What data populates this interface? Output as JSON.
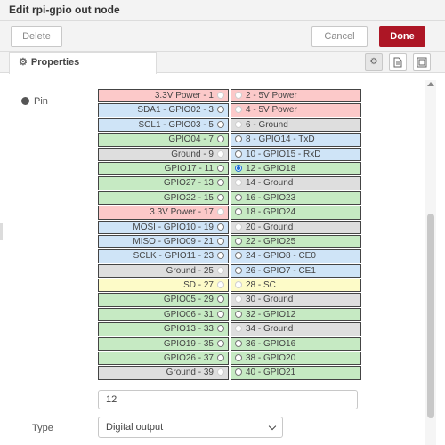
{
  "window": {
    "title": "Edit rpi-gpio out node"
  },
  "toolbar": {
    "delete_label": "Delete",
    "cancel_label": "Cancel",
    "done_label": "Done"
  },
  "tabs": {
    "properties_label": "Properties"
  },
  "form": {
    "pin_label": "Pin",
    "pin_value": "12",
    "type_label": "Type",
    "type_value": "Digital output"
  },
  "pins": [
    {
      "left": "3.3V Power - 1",
      "right": "2 - 5V Power",
      "left_color": "red",
      "right_color": "red",
      "left_radio": false,
      "right_radio": false
    },
    {
      "left": "SDA1 - GPIO02 - 3",
      "right": "4 - 5V Power",
      "left_color": "blue",
      "right_color": "red",
      "left_radio": true,
      "right_radio": false
    },
    {
      "left": "SCL1 - GPIO03 - 5",
      "right": "6 - Ground",
      "left_color": "blue",
      "right_color": "grey",
      "left_radio": true,
      "right_radio": false
    },
    {
      "left": "GPIO04 - 7",
      "right": "8 - GPIO14 - TxD",
      "left_color": "green",
      "right_color": "blue",
      "left_radio": true,
      "right_radio": true
    },
    {
      "left": "Ground - 9",
      "right": "10 - GPIO15 - RxD",
      "left_color": "grey",
      "right_color": "blue",
      "left_radio": false,
      "right_radio": true
    },
    {
      "left": "GPIO17 - 11",
      "right": "12 - GPIO18",
      "left_color": "green",
      "right_color": "green",
      "left_radio": true,
      "right_radio": true,
      "right_checked": true
    },
    {
      "left": "GPIO27 - 13",
      "right": "14 - Ground",
      "left_color": "green",
      "right_color": "grey",
      "left_radio": true,
      "right_radio": false
    },
    {
      "left": "GPIO22 - 15",
      "right": "16 - GPIO23",
      "left_color": "green",
      "right_color": "green",
      "left_radio": true,
      "right_radio": true
    },
    {
      "left": "3.3V Power - 17",
      "right": "18 - GPIO24",
      "left_color": "red",
      "right_color": "green",
      "left_radio": false,
      "right_radio": true
    },
    {
      "left": "MOSI - GPIO10 - 19",
      "right": "20 - Ground",
      "left_color": "blue",
      "right_color": "grey",
      "left_radio": true,
      "right_radio": false
    },
    {
      "left": "MISO - GPIO09 - 21",
      "right": "22 - GPIO25",
      "left_color": "blue",
      "right_color": "green",
      "left_radio": true,
      "right_radio": true
    },
    {
      "left": "SCLK - GPIO11 - 23",
      "right": "24 - GPIO8 - CE0",
      "left_color": "blue",
      "right_color": "blue",
      "left_radio": true,
      "right_radio": true
    },
    {
      "left": "Ground - 25",
      "right": "26 - GPIO7 - CE1",
      "left_color": "grey",
      "right_color": "blue",
      "left_radio": false,
      "right_radio": true
    },
    {
      "left": "SD - 27",
      "right": "28 - SC",
      "left_color": "yellow",
      "right_color": "yellow",
      "left_radio": false,
      "right_radio": false
    },
    {
      "left": "GPIO05 - 29",
      "right": "30 - Ground",
      "left_color": "green",
      "right_color": "grey",
      "left_radio": true,
      "right_radio": false
    },
    {
      "left": "GPIO06 - 31",
      "right": "32 - GPIO12",
      "left_color": "green",
      "right_color": "green",
      "left_radio": true,
      "right_radio": true
    },
    {
      "left": "GPIO13 - 33",
      "right": "34 - Ground",
      "left_color": "green",
      "right_color": "grey",
      "left_radio": true,
      "right_radio": false
    },
    {
      "left": "GPIO19 - 35",
      "right": "36 - GPIO16",
      "left_color": "green",
      "right_color": "green",
      "left_radio": true,
      "right_radio": true
    },
    {
      "left": "GPIO26 - 37",
      "right": "38 - GPIO20",
      "left_color": "green",
      "right_color": "green",
      "left_radio": true,
      "right_radio": true
    },
    {
      "left": "Ground - 39",
      "right": "40 - GPIO21",
      "left_color": "grey",
      "right_color": "green",
      "left_radio": false,
      "right_radio": true
    }
  ],
  "colors": {
    "done_button": "#ad1625",
    "power": "#fcc9c9",
    "serial_bus": "#cfe4f7",
    "gpio": "#c6eac3",
    "ground": "#dedede",
    "eeprom": "#fdfbc8"
  },
  "icons": {
    "properties_tab": "gear-icon",
    "toolbar_1": "gear-icon",
    "toolbar_2": "document-icon",
    "toolbar_3": "frame-icon"
  }
}
